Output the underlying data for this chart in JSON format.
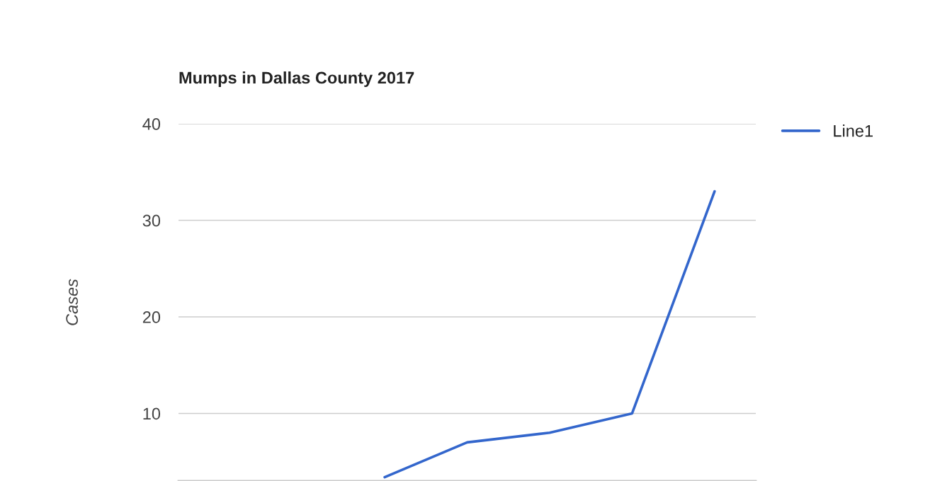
{
  "chart_data": {
    "type": "line",
    "title": "Mumps in Dallas County 2017",
    "ylabel": "Cases",
    "categories": [
      null,
      null,
      null,
      null,
      null,
      null,
      null
    ],
    "series": [
      {
        "name": "Line1",
        "color": "#3366cc",
        "values": [
          null,
          null,
          3.4,
          7,
          8,
          10,
          33
        ]
      }
    ],
    "ylim": [
      3,
      40
    ],
    "yticks": [
      10,
      20,
      30,
      40
    ],
    "grid": "y",
    "legend": "top right",
    "marker": "none",
    "line_style": "solid"
  }
}
